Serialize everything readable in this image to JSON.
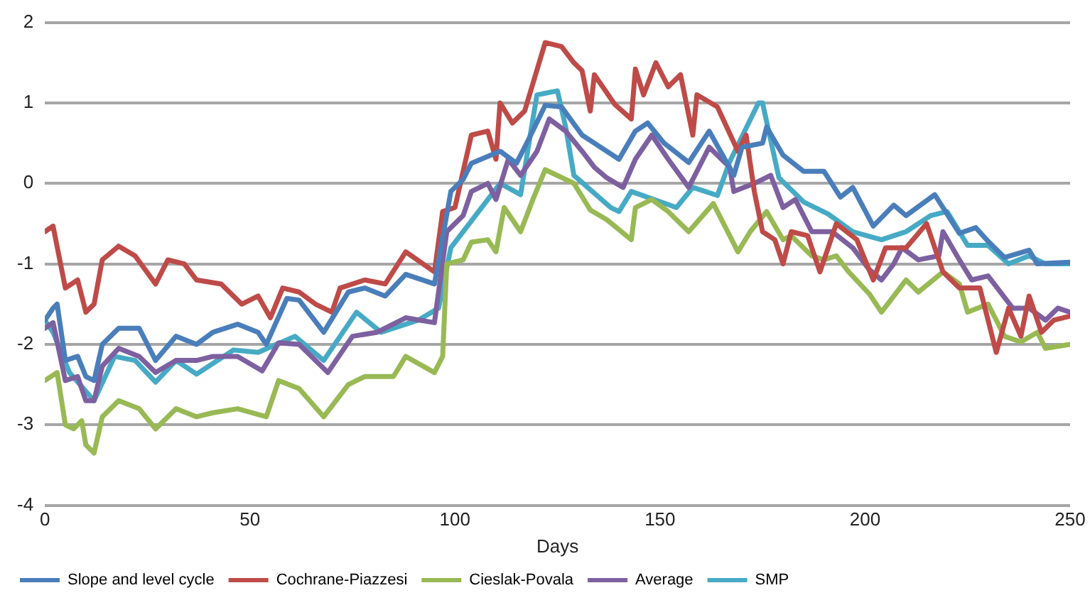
{
  "chart_data": {
    "type": "line",
    "xlabel": "Days",
    "xlim": [
      0,
      250
    ],
    "xticks": [
      0,
      50,
      100,
      150,
      200,
      250
    ],
    "ylim": [
      -4,
      2
    ],
    "yticks": [
      -4,
      -3,
      -2,
      -1,
      0,
      1,
      2
    ],
    "grid": "y",
    "legend": "bottom",
    "marker": "none",
    "line_style": "solid",
    "series": [
      {
        "name": "Slope and level cycle",
        "color": "#4a7ebb",
        "x": [
          0,
          2,
          3,
          5,
          8,
          10,
          12,
          14,
          18,
          23,
          27,
          32,
          37,
          41,
          47,
          52,
          54,
          59,
          62,
          68,
          74,
          78,
          83,
          88,
          95,
          99,
          102,
          104,
          111,
          115,
          118,
          122,
          126,
          131,
          134,
          140,
          144,
          147,
          151,
          157,
          162,
          168,
          170,
          175,
          176,
          180,
          185,
          190,
          194,
          197,
          202,
          207,
          210,
          217,
          223,
          227,
          230,
          234,
          240,
          242,
          250
        ],
        "values": [
          -1.7,
          -1.55,
          -1.5,
          -2.2,
          -2.15,
          -2.4,
          -2.45,
          -2.0,
          -1.8,
          -1.8,
          -2.2,
          -1.9,
          -2.0,
          -1.85,
          -1.75,
          -1.85,
          -2.0,
          -1.43,
          -1.45,
          -1.85,
          -1.35,
          -1.3,
          -1.4,
          -1.13,
          -1.25,
          -0.1,
          0.05,
          0.25,
          0.4,
          0.25,
          0.55,
          0.97,
          0.95,
          0.6,
          0.5,
          0.3,
          0.65,
          0.75,
          0.5,
          0.26,
          0.65,
          0.1,
          0.45,
          0.5,
          0.7,
          0.35,
          0.15,
          0.15,
          -0.17,
          -0.05,
          -0.53,
          -0.27,
          -0.4,
          -0.14,
          -0.62,
          -0.55,
          -0.72,
          -0.92,
          -0.83,
          -1.0,
          -0.98
        ]
      },
      {
        "name": "Cochrane-Piazzesi",
        "color": "#be4b48",
        "x": [
          0,
          2,
          5,
          8,
          10,
          12,
          14,
          18,
          22,
          27,
          30,
          34,
          37,
          43,
          48,
          52,
          55,
          58,
          62,
          66,
          70,
          72,
          78,
          83,
          88,
          95,
          97,
          100,
          104,
          108,
          110,
          111,
          114,
          117,
          122,
          126,
          129,
          131,
          133,
          134,
          139,
          143,
          144,
          146,
          149,
          152,
          155,
          158,
          159,
          164,
          169,
          171,
          173,
          175,
          178,
          180,
          182,
          186,
          189,
          193,
          198,
          202,
          205,
          210,
          215,
          219,
          223,
          228,
          232,
          235,
          238,
          240,
          243,
          246,
          250
        ],
        "values": [
          -0.6,
          -0.53,
          -1.3,
          -1.2,
          -1.6,
          -1.5,
          -0.95,
          -0.78,
          -0.9,
          -1.25,
          -0.95,
          -1.0,
          -1.2,
          -1.25,
          -1.5,
          -1.4,
          -1.67,
          -1.3,
          -1.35,
          -1.5,
          -1.6,
          -1.3,
          -1.2,
          -1.25,
          -0.85,
          -1.1,
          -0.35,
          -0.3,
          0.6,
          0.65,
          0.3,
          1.0,
          0.75,
          0.9,
          1.75,
          1.7,
          1.5,
          1.4,
          0.9,
          1.35,
          0.98,
          0.8,
          1.42,
          1.1,
          1.5,
          1.2,
          1.35,
          0.6,
          1.1,
          0.95,
          0.4,
          0.6,
          -0.1,
          -0.6,
          -0.7,
          -1.0,
          -0.6,
          -0.65,
          -1.1,
          -0.5,
          -0.7,
          -1.2,
          -0.8,
          -0.8,
          -0.5,
          -1.1,
          -1.3,
          -1.3,
          -2.1,
          -1.55,
          -1.9,
          -1.4,
          -1.85,
          -1.7,
          -1.65
        ]
      },
      {
        "name": "Cieslak-Povala",
        "color": "#98b954",
        "x": [
          0,
          3,
          5,
          7,
          9,
          10,
          12,
          14,
          18,
          23,
          27,
          32,
          37,
          41,
          47,
          54,
          57,
          62,
          68,
          74,
          78,
          85,
          88,
          95,
          97,
          98,
          102,
          104,
          108,
          110,
          112,
          116,
          119,
          122,
          129,
          133,
          137,
          143,
          144,
          148,
          152,
          157,
          163,
          169,
          172,
          176,
          180,
          182,
          187,
          190,
          193,
          196,
          201,
          204,
          210,
          213,
          219,
          223,
          225,
          230,
          234,
          238,
          242,
          244,
          250
        ],
        "values": [
          -2.45,
          -2.35,
          -3.0,
          -3.05,
          -2.95,
          -3.25,
          -3.35,
          -2.9,
          -2.7,
          -2.8,
          -3.05,
          -2.8,
          -2.9,
          -2.85,
          -2.8,
          -2.9,
          -2.45,
          -2.55,
          -2.9,
          -2.5,
          -2.4,
          -2.4,
          -2.15,
          -2.35,
          -2.15,
          -1.0,
          -0.95,
          -0.73,
          -0.7,
          -0.85,
          -0.3,
          -0.6,
          -0.2,
          0.17,
          0.0,
          -0.33,
          -0.45,
          -0.7,
          -0.3,
          -0.2,
          -0.35,
          -0.6,
          -0.25,
          -0.85,
          -0.6,
          -0.35,
          -0.7,
          -0.65,
          -0.9,
          -0.95,
          -0.9,
          -1.1,
          -1.37,
          -1.6,
          -1.2,
          -1.35,
          -1.1,
          -1.25,
          -1.6,
          -1.5,
          -1.9,
          -1.97,
          -1.85,
          -2.05,
          -2.0
        ]
      },
      {
        "name": "Average",
        "color": "#7d60a0",
        "x": [
          0,
          2,
          5,
          8,
          10,
          12,
          14,
          18,
          23,
          27,
          32,
          37,
          41,
          47,
          53,
          57,
          62,
          69,
          75,
          81,
          88,
          95,
          98,
          102,
          104,
          108,
          110,
          113,
          116,
          120,
          123,
          127,
          131,
          134,
          137,
          141,
          144,
          148,
          152,
          157,
          162,
          167,
          168,
          173,
          177,
          180,
          183,
          187,
          192,
          197,
          201,
          204,
          207,
          209,
          213,
          218,
          219,
          223,
          226,
          230,
          236,
          240,
          244,
          247,
          250
        ],
        "values": [
          -1.8,
          -1.73,
          -2.45,
          -2.4,
          -2.7,
          -2.7,
          -2.27,
          -2.05,
          -2.15,
          -2.35,
          -2.2,
          -2.2,
          -2.15,
          -2.15,
          -2.33,
          -1.98,
          -2.0,
          -2.35,
          -1.9,
          -1.85,
          -1.67,
          -1.73,
          -0.6,
          -0.4,
          -0.1,
          0.0,
          -0.2,
          0.3,
          0.1,
          0.4,
          0.8,
          0.65,
          0.4,
          0.2,
          0.07,
          -0.05,
          0.3,
          0.6,
          0.3,
          -0.05,
          0.45,
          0.2,
          -0.1,
          0.0,
          0.1,
          -0.3,
          -0.2,
          -0.6,
          -0.6,
          -0.8,
          -1.07,
          -1.2,
          -1.0,
          -0.8,
          -0.95,
          -0.9,
          -0.6,
          -0.95,
          -1.2,
          -1.15,
          -1.55,
          -1.55,
          -1.7,
          -1.55,
          -1.6
        ]
      },
      {
        "name": "SMP",
        "color": "#46aac5",
        "x": [
          0,
          2,
          6,
          12,
          17,
          22,
          27,
          32,
          37,
          46,
          52,
          61,
          68,
          76,
          82,
          91,
          96,
          99,
          105,
          111,
          116,
          119,
          120,
          125,
          127,
          129,
          138,
          140,
          143,
          154,
          158,
          164,
          167,
          174,
          175,
          179,
          185,
          191,
          197,
          204,
          210,
          216,
          220,
          225,
          230,
          235,
          240,
          244,
          250
        ],
        "values": [
          -1.7,
          -1.85,
          -2.35,
          -2.7,
          -2.15,
          -2.2,
          -2.47,
          -2.2,
          -2.37,
          -2.07,
          -2.1,
          -1.9,
          -2.2,
          -1.6,
          -1.85,
          -1.7,
          -1.55,
          -0.8,
          -0.4,
          0.0,
          -0.14,
          0.8,
          1.1,
          1.15,
          0.7,
          0.1,
          -0.3,
          -0.35,
          -0.1,
          -0.3,
          -0.05,
          -0.15,
          0.27,
          1.0,
          1.0,
          0.07,
          -0.23,
          -0.38,
          -0.6,
          -0.7,
          -0.6,
          -0.4,
          -0.35,
          -0.77,
          -0.77,
          -1.0,
          -0.9,
          -1.0,
          -1.0
        ]
      }
    ]
  }
}
